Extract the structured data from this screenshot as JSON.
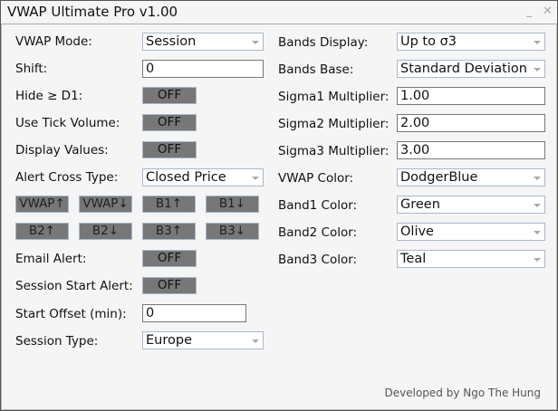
{
  "window": {
    "title": "VWAP Ultimate Pro v1.00",
    "minimize": "_",
    "close": "✕"
  },
  "left": {
    "vwap_mode": {
      "label": "VWAP Mode:",
      "value": "Session"
    },
    "shift": {
      "label": "Shift:",
      "value": "0"
    },
    "hide_d1": {
      "label": "Hide ≥ D1:",
      "value": "OFF"
    },
    "tick_volume": {
      "label": "Use Tick Volume:",
      "value": "OFF"
    },
    "display_values": {
      "label": "Display Values:",
      "value": "OFF"
    },
    "alert_cross": {
      "label": "Alert Cross Type:",
      "value": "Closed Price"
    },
    "alert_buttons": [
      "VWAP↑",
      "VWAP↓",
      "B1↑",
      "B1↓",
      "B2↑",
      "B2↓",
      "B3↑",
      "B3↓"
    ],
    "email_alert": {
      "label": "Email Alert:",
      "value": "OFF"
    },
    "session_start_alert": {
      "label": "Session Start Alert:",
      "value": "OFF"
    },
    "start_offset": {
      "label": "Start Offset (min):",
      "value": "0"
    },
    "session_type": {
      "label": "Session Type:",
      "value": "Europe"
    }
  },
  "right": {
    "bands_display": {
      "label": "Bands Display:",
      "value": "Up to σ3"
    },
    "bands_base": {
      "label": "Bands Base:",
      "value": "Standard Deviation"
    },
    "sigma1": {
      "label": "Sigma1 Multiplier:",
      "value": "1.00"
    },
    "sigma2": {
      "label": "Sigma2 Multiplier:",
      "value": "2.00"
    },
    "sigma3": {
      "label": "Sigma3 Multiplier:",
      "value": "3.00"
    },
    "vwap_color": {
      "label": "VWAP Color:",
      "value": "DodgerBlue"
    },
    "band1_color": {
      "label": "Band1 Color:",
      "value": "Green"
    },
    "band2_color": {
      "label": "Band2 Color:",
      "value": "Olive"
    },
    "band3_color": {
      "label": "Band3 Color:",
      "value": "Teal"
    }
  },
  "footer": "Developed by Ngo The Hung",
  "colors": {
    "toggle_off": "#777777",
    "panel_bg": "#f5f5f5",
    "select_border": "#a8b8cc"
  }
}
